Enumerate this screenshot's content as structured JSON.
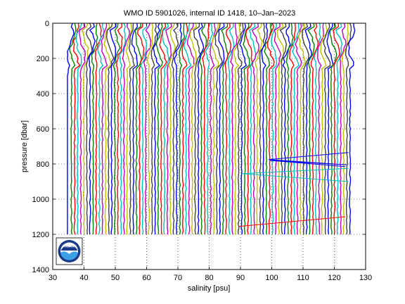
{
  "chart_data": {
    "type": "line",
    "title": "WMO ID 5901026, internal ID 1418, 10–Jan–2023",
    "xlabel": "salinity [psu]",
    "ylabel": "pressure [dbar]",
    "xlim": [
      30,
      130
    ],
    "ylim": [
      0,
      1400
    ],
    "y_reversed": true,
    "xticks": [
      30,
      40,
      50,
      60,
      70,
      80,
      90,
      100,
      110,
      120,
      130
    ],
    "yticks": [
      0,
      200,
      400,
      600,
      800,
      1000,
      1200,
      1400
    ],
    "grid": true,
    "profile_band": {
      "x_start": 35.0,
      "x_end": 125.0,
      "profile_count": 92,
      "p_max": 1200,
      "colors": [
        "#0000ff",
        "#008000",
        "#ff0000",
        "#00bfbf",
        "#bf00bf",
        "#bfbf00",
        "#404040"
      ]
    },
    "annotations": {
      "blue_zigzag": {
        "color": "#0000ff",
        "x": [
          124.5,
          99.0,
          124.0,
          99.5,
          123.5
        ],
        "y": [
          735,
          775,
          805,
          780,
          815
        ]
      },
      "cyan_zigzag": {
        "color": "#00bfbf",
        "x": [
          124.5,
          90.5,
          124.5
        ],
        "y": [
          825,
          855,
          900
        ]
      },
      "red_line": {
        "color": "#ff0000",
        "x": [
          89.5,
          123.5
        ],
        "y": [
          1155,
          1100
        ]
      }
    },
    "logo": {
      "name": "noaa-logo",
      "text": "NOAA"
    }
  }
}
